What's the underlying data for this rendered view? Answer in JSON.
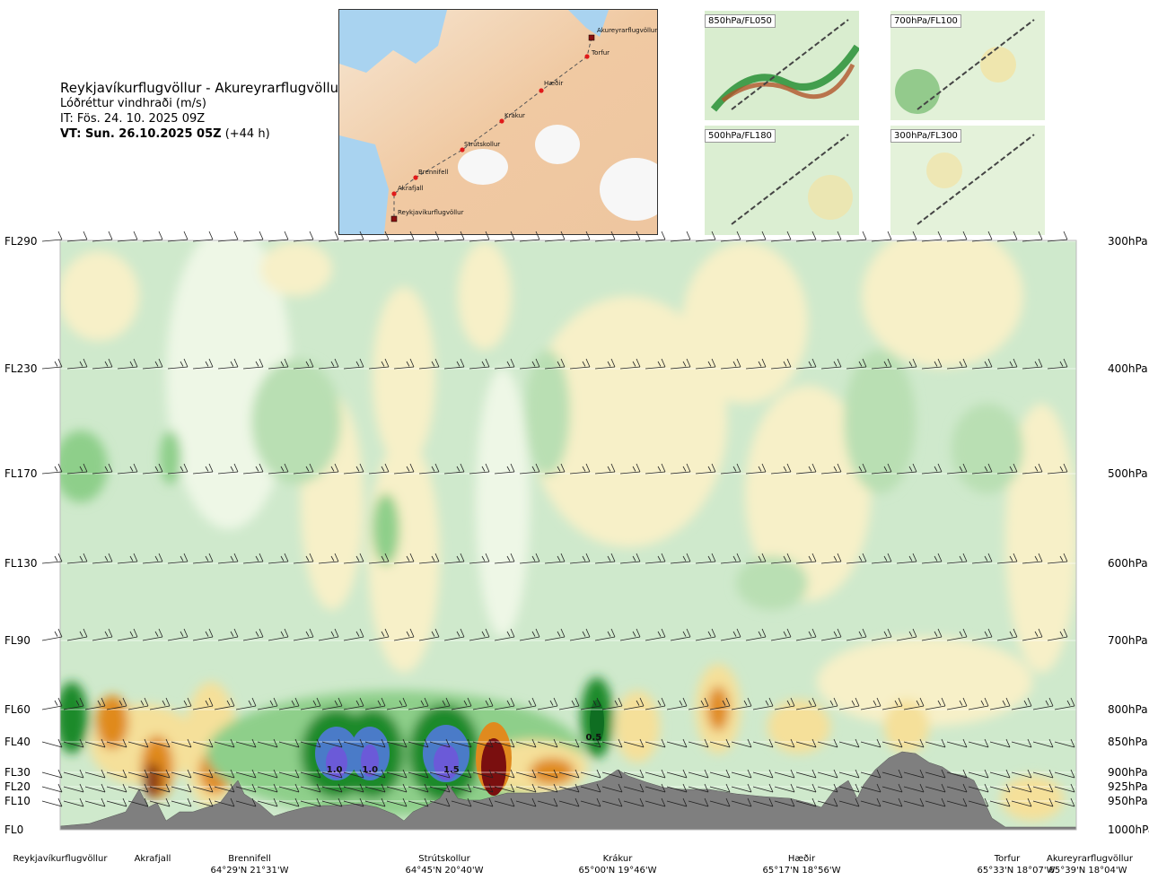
{
  "header": {
    "route": "Reykjavíkurflugvöllur - Akureyrarflugvöllur",
    "variable": "Lóðréttur vindhraði (m/s)",
    "issue_time": "IT: Fös. 24. 10. 2025 09Z",
    "valid_time_bold": "VT: Sun. 26.10.2025 05Z",
    "valid_time_offset": " (+44 h)"
  },
  "route_map": {
    "points": [
      {
        "name": "Akureyrarflugvöllur",
        "kind": "airport"
      },
      {
        "name": "Torfur",
        "kind": "waypoint"
      },
      {
        "name": "Hæðir",
        "kind": "waypoint"
      },
      {
        "name": "Krákur",
        "kind": "waypoint"
      },
      {
        "name": "Strútskollur",
        "kind": "waypoint"
      },
      {
        "name": "Brennifell",
        "kind": "waypoint"
      },
      {
        "name": "Akrafjall",
        "kind": "waypoint"
      },
      {
        "name": "Reykjavíkurflugvöllur",
        "kind": "airport"
      }
    ]
  },
  "mini_maps": [
    {
      "label": "850hPa/FL050"
    },
    {
      "label": "700hPa/FL100"
    },
    {
      "label": "500hPa/FL180"
    },
    {
      "label": "300hPa/FL300"
    }
  ],
  "colors": {
    "strong_down_brown": "#7a0f0f",
    "down_orange": "#e08a1e",
    "down_yellow": "#f5e09a",
    "light_yellow": "#f7f0c8",
    "neutral": "#eef7e6",
    "up_light_green": "#cfe9cc",
    "up_green": "#8ecf8a",
    "up_dark_green": "#1d8a2c",
    "up_blue": "#4a7bc8",
    "up_violet": "#6b5ad8",
    "terrain": "#7f7f7f"
  },
  "chart_data": {
    "type": "heatmap",
    "title": "Lóðréttur vindhraði (m/s)",
    "xlabel": "",
    "ylabel": "",
    "x_stations": [
      {
        "name": "Reykjavíkurflugvöllur",
        "coord": "",
        "dist": 0
      },
      {
        "name": "Akrafjall",
        "coord": "",
        "dist": 0.09
      },
      {
        "name": "Brennifell",
        "coord": "64°29'N 21°31'W",
        "dist": 0.19
      },
      {
        "name": "Strútskollur",
        "coord": "64°45'N 20°40'W",
        "dist": 0.39
      },
      {
        "name": "Krákur",
        "coord": "65°00'N 19°46'W",
        "dist": 0.57
      },
      {
        "name": "Hæðir",
        "coord": "65°17'N 18°56'W",
        "dist": 0.76
      },
      {
        "name": "Torfur",
        "coord": "65°33'N 18°07'W",
        "dist": 0.95
      },
      {
        "name": "Akureyrarflugvöllur",
        "coord": "65°39'N 18°04'W",
        "dist": 1.0
      }
    ],
    "y_levels": [
      {
        "fl": "FL0",
        "hpa": "1000hPa",
        "value": 0
      },
      {
        "fl": "FL10",
        "hpa": "950hPa",
        "value": 10
      },
      {
        "fl": "FL20",
        "hpa": "925hPa",
        "value": 20
      },
      {
        "fl": "FL30",
        "hpa": "900hPa",
        "value": 30
      },
      {
        "fl": "FL40",
        "hpa": "850hPa",
        "value": 40
      },
      {
        "fl": "FL60",
        "hpa": "800hPa",
        "value": 60
      },
      {
        "fl": "FL90",
        "hpa": "700hPa",
        "value": 90
      },
      {
        "fl": "FL130",
        "hpa": "600hPa",
        "value": 130
      },
      {
        "fl": "FL170",
        "hpa": "500hPa",
        "value": 170
      },
      {
        "fl": "FL230",
        "hpa": "400hPa",
        "value": 230
      },
      {
        "fl": "FL290",
        "hpa": "300hPa",
        "value": 290
      }
    ],
    "ylim": [
      0,
      290
    ],
    "contour_labels": [
      {
        "text": "1.0",
        "dist": 0.27,
        "fl": 30
      },
      {
        "text": "1.0",
        "dist": 0.305,
        "fl": 30
      },
      {
        "text": "1.5",
        "dist": 0.385,
        "fl": 30
      },
      {
        "text": "0.5",
        "dist": 0.525,
        "fl": 41
      }
    ],
    "features": [
      {
        "kind": "updraft",
        "dist": 0.27,
        "fl": 36,
        "strength": 1.0
      },
      {
        "kind": "updraft",
        "dist": 0.305,
        "fl": 36,
        "strength": 1.0
      },
      {
        "kind": "updraft",
        "dist": 0.385,
        "fl": 34,
        "strength": 1.5
      },
      {
        "kind": "downdraft",
        "dist": 0.43,
        "fl": 28,
        "strength": -1.5
      },
      {
        "kind": "downdraft",
        "dist": 0.1,
        "fl": 25,
        "strength": -1.0
      },
      {
        "kind": "updraft",
        "dist": 0.53,
        "fl": 45,
        "strength": 0.5
      }
    ]
  }
}
